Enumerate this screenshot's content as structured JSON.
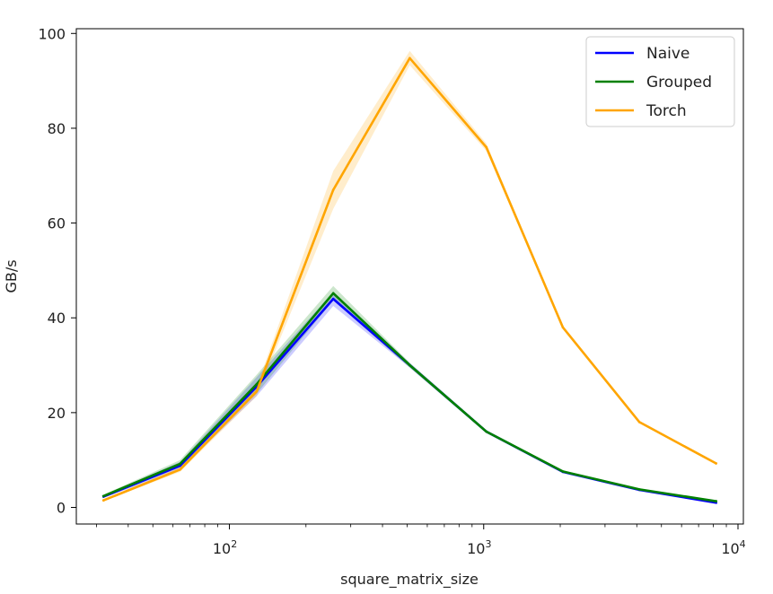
{
  "chart_data": {
    "type": "line",
    "xlabel": "square_matrix_size",
    "ylabel": "GB/s",
    "xscale": "log",
    "xlim": [
      25,
      10500
    ],
    "ylim": [
      -3.5,
      101
    ],
    "x": [
      32,
      64,
      128,
      256,
      512,
      1024,
      2048,
      4096,
      8192
    ],
    "x_ticks": [
      {
        "value": 100,
        "base": "10",
        "exp": "2"
      },
      {
        "value": 1000,
        "base": "10",
        "exp": "3"
      },
      {
        "value": 10000,
        "base": "10",
        "exp": "4"
      }
    ],
    "y_ticks": [
      {
        "value": 0,
        "label": "0"
      },
      {
        "value": 20,
        "label": "20"
      },
      {
        "value": 40,
        "label": "40"
      },
      {
        "value": 60,
        "label": "60"
      },
      {
        "value": 80,
        "label": "80"
      },
      {
        "value": 100,
        "label": "100"
      }
    ],
    "legend_position": "top-right",
    "series": [
      {
        "name": "Naive",
        "color": "#0000ff",
        "values": [
          2.3,
          8.8,
          25.5,
          44.0,
          30.0,
          16.0,
          7.5,
          3.7,
          1.0
        ],
        "band": [
          0.3,
          0.8,
          2.0,
          1.5,
          0.5,
          0.3,
          0.2,
          0.2,
          0.1
        ]
      },
      {
        "name": "Grouped",
        "color": "#008000",
        "values": [
          2.4,
          9.2,
          26.0,
          45.2,
          30.0,
          16.0,
          7.6,
          3.8,
          1.3
        ],
        "band": [
          0.3,
          0.8,
          2.0,
          1.5,
          0.5,
          0.3,
          0.2,
          0.2,
          0.1
        ]
      },
      {
        "name": "Torch",
        "color": "#ffa500",
        "values": [
          1.5,
          8.0,
          24.5,
          67.0,
          94.8,
          76.0,
          38.0,
          18.0,
          9.3
        ],
        "band": [
          0.2,
          0.5,
          1.0,
          4.0,
          1.5,
          0.8,
          0.3,
          0.2,
          0.2
        ]
      }
    ]
  }
}
